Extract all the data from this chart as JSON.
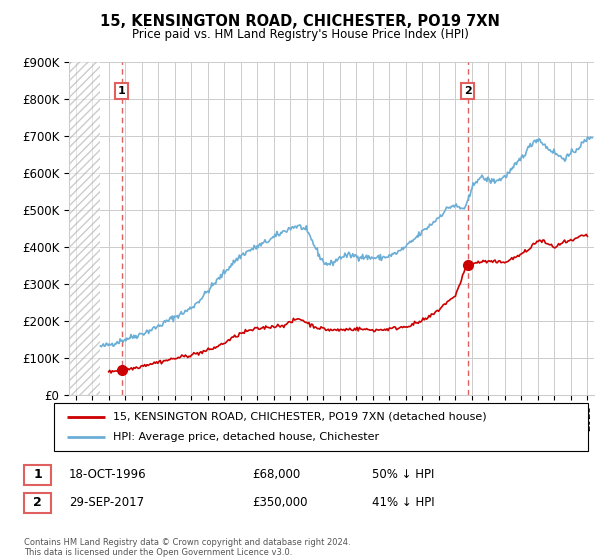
{
  "title": "15, KENSINGTON ROAD, CHICHESTER, PO19 7XN",
  "subtitle": "Price paid vs. HM Land Registry's House Price Index (HPI)",
  "ylim": [
    0,
    900000
  ],
  "yticks": [
    0,
    100000,
    200000,
    300000,
    400000,
    500000,
    600000,
    700000,
    800000,
    900000
  ],
  "ytick_labels": [
    "£0",
    "£100K",
    "£200K",
    "£300K",
    "£400K",
    "£500K",
    "£600K",
    "£700K",
    "£800K",
    "£900K"
  ],
  "xlim_start": 1993.6,
  "xlim_end": 2025.4,
  "hatch_end": 1995.5,
  "transaction1": {
    "year": 1996.79,
    "price": 68000,
    "label": "1",
    "date": "18-OCT-1996",
    "amount": "£68,000",
    "pct": "50% ↓ HPI"
  },
  "transaction2": {
    "year": 2017.75,
    "price": 350000,
    "label": "2",
    "date": "29-SEP-2017",
    "amount": "£350,000",
    "pct": "41% ↓ HPI"
  },
  "legend_line1": "15, KENSINGTON ROAD, CHICHESTER, PO19 7XN (detached house)",
  "legend_line2": "HPI: Average price, detached house, Chichester",
  "copyright": "Contains HM Land Registry data © Crown copyright and database right 2024.\nThis data is licensed under the Open Government Licence v3.0.",
  "red_color": "#cc0000",
  "blue_color": "#6baed6",
  "dashed_color": "#e06060",
  "background_color": "#ffffff",
  "grid_color": "#cccccc"
}
